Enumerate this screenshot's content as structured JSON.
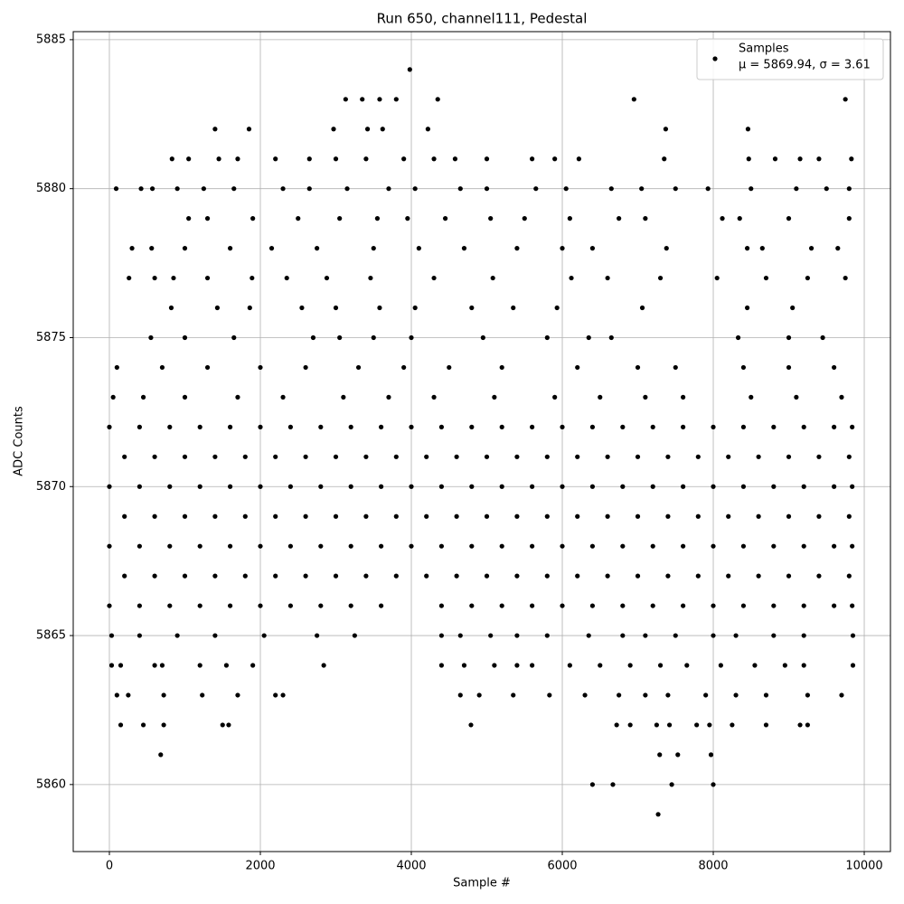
{
  "chart_data": {
    "type": "scatter",
    "title": "Run 650, channel111, Pedestal",
    "xlabel": "Sample #",
    "ylabel": "ADC Counts",
    "xlim": [
      -479,
      10347
    ],
    "ylim": [
      5857.75,
      5885.27
    ],
    "xticks": [
      0,
      2000,
      4000,
      6000,
      8000,
      10000
    ],
    "yticks": [
      5860,
      5865,
      5870,
      5875,
      5880,
      5885
    ],
    "grid": true,
    "legend": "upper right",
    "series": [
      {
        "name": "Samples",
        "label": "μ = 5869.94, σ = 3.61",
        "color": "#000000",
        "x": [
          0,
          400,
          800,
          1200,
          1600,
          2000,
          2400,
          2800,
          3200,
          3600,
          4400,
          4800,
          5200,
          5600,
          6000,
          6400,
          6800,
          7200,
          7600,
          8000,
          8400,
          8800,
          9200,
          9600,
          9840,
          200,
          600,
          1000,
          1400,
          1800,
          2200,
          2600,
          3000,
          3400,
          3800,
          4200,
          4600,
          5000,
          5400,
          5800,
          6200,
          6600,
          7000,
          7400,
          7800,
          8200,
          8600,
          9000,
          9400,
          9800,
          0,
          400,
          800,
          1200,
          1600,
          2000,
          2400,
          2800,
          3200,
          3600,
          4000,
          4400,
          4800,
          5200,
          5600,
          6000,
          6400,
          6800,
          7200,
          7600,
          8000,
          8400,
          8800,
          9200,
          9600,
          9840,
          200,
          600,
          1000,
          1400,
          1800,
          2200,
          2600,
          3000,
          3400,
          3800,
          4200,
          4600,
          5000,
          5400,
          5800,
          6200,
          6600,
          7000,
          7400,
          7800,
          8200,
          8600,
          9000,
          9400,
          9800,
          0,
          400,
          800,
          1200,
          1600,
          2000,
          2400,
          2800,
          3200,
          3600,
          4000,
          4400,
          4800,
          5200,
          5600,
          6000,
          6400,
          6800,
          7200,
          7600,
          8000,
          8400,
          8800,
          9200,
          9600,
          9840,
          200,
          600,
          1000,
          1400,
          1800,
          2200,
          2600,
          3000,
          3400,
          3800,
          4200,
          4600,
          5000,
          5400,
          5800,
          6200,
          6600,
          7000,
          7400,
          7800,
          8200,
          8600,
          9000,
          9400,
          9800,
          0,
          400,
          800,
          1200,
          1600,
          2000,
          2400,
          2800,
          3200,
          3600,
          4000,
          4400,
          4800,
          5200,
          5600,
          6000,
          6400,
          6800,
          7200,
          7600,
          8000,
          8400,
          8800,
          9200,
          9600,
          9840,
          50,
          450,
          1000,
          1700,
          2300,
          3100,
          3700,
          4300,
          5100,
          5900,
          6500,
          7100,
          7600,
          8500,
          9100,
          9700,
          100,
          700,
          1300,
          2000,
          2600,
          3300,
          3900,
          4500,
          5200,
          6200,
          7000,
          7500,
          8400,
          9000,
          9600,
          550,
          1000,
          1650,
          2700,
          3050,
          3500,
          4000,
          4950,
          5800,
          6350,
          6650,
          8330,
          9000,
          9450,
          820,
          1430,
          1860,
          2550,
          3000,
          3580,
          4050,
          4800,
          5350,
          5930,
          7060,
          8450,
          9050,
          260,
          600,
          850,
          1300,
          1890,
          2350,
          2880,
          3460,
          4300,
          5080,
          6120,
          6600,
          7300,
          8050,
          8700,
          9250,
          9750,
          300,
          560,
          1000,
          1600,
          2150,
          2750,
          3500,
          4100,
          4700,
          5400,
          6000,
          6400,
          7380,
          8450,
          8650,
          9300,
          9650,
          1050,
          1300,
          1900,
          2500,
          3050,
          3550,
          3950,
          4450,
          5050,
          5500,
          6100,
          6750,
          7100,
          8120,
          8350,
          9000,
          9800,
          90,
          420,
          570,
          900,
          1250,
          1650,
          2300,
          2650,
          3150,
          3700,
          4050,
          4650,
          5000,
          5650,
          6050,
          6650,
          7050,
          7500,
          7930,
          8500,
          9100,
          9500,
          9800,
          830,
          1050,
          1450,
          1700,
          2200,
          2650,
          3000,
          3400,
          3900,
          4300,
          4580,
          5000,
          5600,
          5900,
          6220,
          7350,
          8470,
          8820,
          9150,
          9400,
          9830,
          30,
          400,
          900,
          1400,
          2050,
          2750,
          3250,
          4400,
          4650,
          5050,
          5400,
          5800,
          6350,
          6800,
          7100,
          7500,
          8000,
          8300,
          8800,
          9200,
          9850,
          30,
          150,
          600,
          700,
          1200,
          1550,
          1900,
          2840,
          4400,
          4700,
          5100,
          5400,
          5600,
          6100,
          6500,
          6900,
          7300,
          7650,
          8100,
          8550,
          8950,
          9200,
          9850,
          100,
          250,
          720,
          1230,
          1700,
          2200,
          2300,
          4650,
          4900,
          5350,
          5830,
          6300,
          6750,
          7100,
          7400,
          7900,
          8300,
          8700,
          9250,
          9700,
          3980,
          3130,
          3350,
          3580,
          3800,
          4350,
          6950,
          9750,
          1400,
          1850,
          2970,
          3420,
          3620,
          4220,
          7370,
          8460,
          150,
          450,
          720,
          1500,
          1580,
          4790,
          6720,
          6900,
          7250,
          7420,
          7780,
          7950,
          8250,
          8700,
          9150,
          9250,
          680,
          7290,
          7530,
          7970,
          6400,
          6670,
          7450,
          8000,
          7270
        ],
        "y": [
          5866,
          5866,
          5866,
          5866,
          5866,
          5866,
          5866,
          5866,
          5866,
          5866,
          5866,
          5866,
          5866,
          5866,
          5866,
          5866,
          5866,
          5866,
          5866,
          5866,
          5866,
          5866,
          5866,
          5866,
          5866,
          5867,
          5867,
          5867,
          5867,
          5867,
          5867,
          5867,
          5867,
          5867,
          5867,
          5867,
          5867,
          5867,
          5867,
          5867,
          5867,
          5867,
          5867,
          5867,
          5867,
          5867,
          5867,
          5867,
          5867,
          5867,
          5868,
          5868,
          5868,
          5868,
          5868,
          5868,
          5868,
          5868,
          5868,
          5868,
          5868,
          5868,
          5868,
          5868,
          5868,
          5868,
          5868,
          5868,
          5868,
          5868,
          5868,
          5868,
          5868,
          5868,
          5868,
          5868,
          5869,
          5869,
          5869,
          5869,
          5869,
          5869,
          5869,
          5869,
          5869,
          5869,
          5869,
          5869,
          5869,
          5869,
          5869,
          5869,
          5869,
          5869,
          5869,
          5869,
          5869,
          5869,
          5869,
          5869,
          5869,
          5870,
          5870,
          5870,
          5870,
          5870,
          5870,
          5870,
          5870,
          5870,
          5870,
          5870,
          5870,
          5870,
          5870,
          5870,
          5870,
          5870,
          5870,
          5870,
          5870,
          5870,
          5870,
          5870,
          5870,
          5870,
          5870,
          5871,
          5871,
          5871,
          5871,
          5871,
          5871,
          5871,
          5871,
          5871,
          5871,
          5871,
          5871,
          5871,
          5871,
          5871,
          5871,
          5871,
          5871,
          5871,
          5871,
          5871,
          5871,
          5871,
          5871,
          5871,
          5872,
          5872,
          5872,
          5872,
          5872,
          5872,
          5872,
          5872,
          5872,
          5872,
          5872,
          5872,
          5872,
          5872,
          5872,
          5872,
          5872,
          5872,
          5872,
          5872,
          5872,
          5872,
          5872,
          5872,
          5872,
          5872,
          5873,
          5873,
          5873,
          5873,
          5873,
          5873,
          5873,
          5873,
          5873,
          5873,
          5873,
          5873,
          5873,
          5873,
          5873,
          5873,
          5874,
          5874,
          5874,
          5874,
          5874,
          5874,
          5874,
          5874,
          5874,
          5874,
          5874,
          5874,
          5874,
          5874,
          5874,
          5875,
          5875,
          5875,
          5875,
          5875,
          5875,
          5875,
          5875,
          5875,
          5875,
          5875,
          5875,
          5875,
          5875,
          5876,
          5876,
          5876,
          5876,
          5876,
          5876,
          5876,
          5876,
          5876,
          5876,
          5876,
          5876,
          5876,
          5877,
          5877,
          5877,
          5877,
          5877,
          5877,
          5877,
          5877,
          5877,
          5877,
          5877,
          5877,
          5877,
          5877,
          5877,
          5877,
          5877,
          5878,
          5878,
          5878,
          5878,
          5878,
          5878,
          5878,
          5878,
          5878,
          5878,
          5878,
          5878,
          5878,
          5878,
          5878,
          5878,
          5878,
          5879,
          5879,
          5879,
          5879,
          5879,
          5879,
          5879,
          5879,
          5879,
          5879,
          5879,
          5879,
          5879,
          5879,
          5879,
          5879,
          5879,
          5880,
          5880,
          5880,
          5880,
          5880,
          5880,
          5880,
          5880,
          5880,
          5880,
          5880,
          5880,
          5880,
          5880,
          5880,
          5880,
          5880,
          5880,
          5880,
          5880,
          5880,
          5880,
          5880,
          5881,
          5881,
          5881,
          5881,
          5881,
          5881,
          5881,
          5881,
          5881,
          5881,
          5881,
          5881,
          5881,
          5881,
          5881,
          5881,
          5881,
          5881,
          5881,
          5881,
          5881,
          5865,
          5865,
          5865,
          5865,
          5865,
          5865,
          5865,
          5865,
          5865,
          5865,
          5865,
          5865,
          5865,
          5865,
          5865,
          5865,
          5865,
          5865,
          5865,
          5865,
          5865,
          5864,
          5864,
          5864,
          5864,
          5864,
          5864,
          5864,
          5864,
          5864,
          5864,
          5864,
          5864,
          5864,
          5864,
          5864,
          5864,
          5864,
          5864,
          5864,
          5864,
          5864,
          5864,
          5864,
          5863,
          5863,
          5863,
          5863,
          5863,
          5863,
          5863,
          5863,
          5863,
          5863,
          5863,
          5863,
          5863,
          5863,
          5863,
          5863,
          5863,
          5863,
          5863,
          5863,
          5884,
          5883,
          5883,
          5883,
          5883,
          5883,
          5883,
          5883,
          5882,
          5882,
          5882,
          5882,
          5882,
          5882,
          5882,
          5882,
          5862,
          5862,
          5862,
          5862,
          5862,
          5862,
          5862,
          5862,
          5862,
          5862,
          5862,
          5862,
          5862,
          5862,
          5862,
          5862,
          5861,
          5861,
          5861,
          5861,
          5860,
          5860,
          5860,
          5860,
          5859
        ]
      }
    ]
  }
}
